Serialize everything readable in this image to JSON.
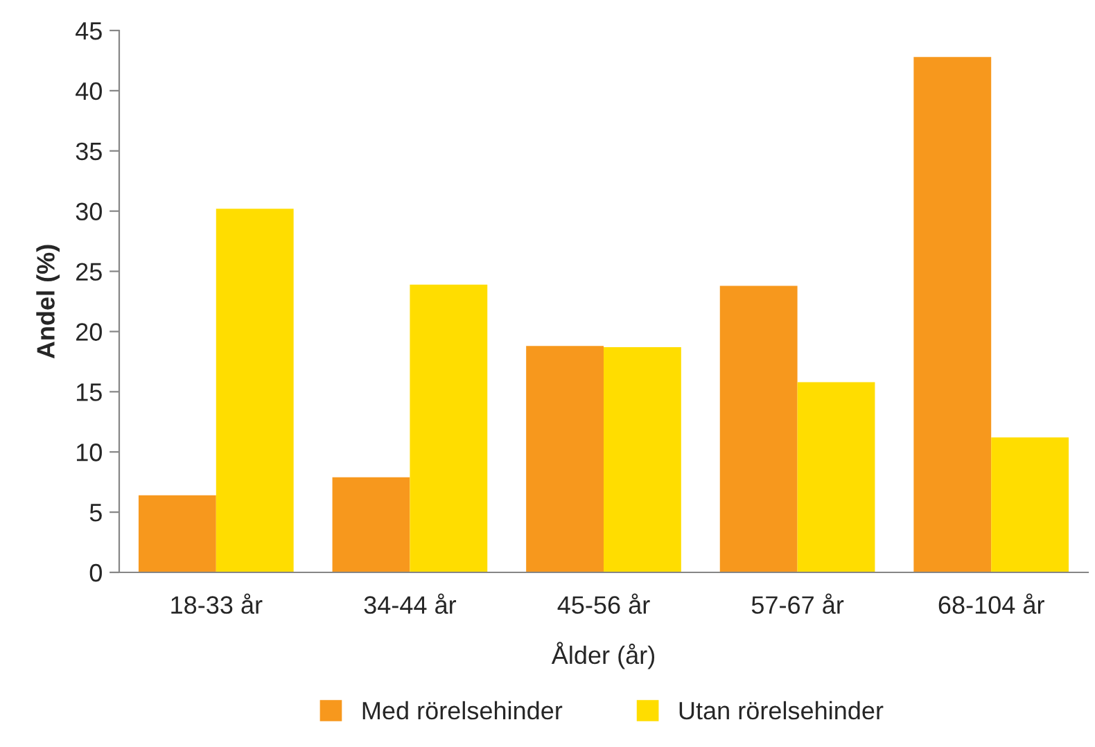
{
  "chart_data": {
    "type": "bar",
    "xlabel": "Ålder (år)",
    "ylabel": "Andel (%)",
    "categories": [
      "18-33 år",
      "34-44 år",
      "45-56 år",
      "57-67 år",
      "68-104 år"
    ],
    "series": [
      {
        "name": "Med rörelsehinder",
        "color": "#f7981d",
        "values": [
          6.4,
          7.9,
          18.8,
          23.8,
          42.8
        ]
      },
      {
        "name": "Utan rörelsehinder",
        "color": "#ffdd00",
        "values": [
          30.2,
          23.9,
          18.7,
          15.8,
          11.2
        ]
      }
    ],
    "ylim": [
      0,
      45
    ],
    "yticks": [
      0,
      5,
      10,
      15,
      20,
      25,
      30,
      35,
      40,
      45
    ],
    "grid": false,
    "legend": "bottom"
  }
}
